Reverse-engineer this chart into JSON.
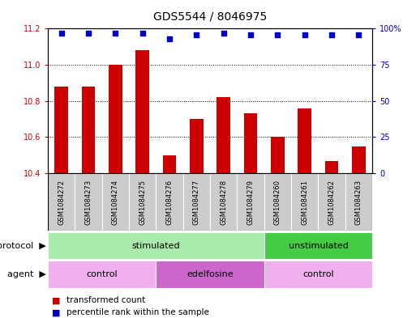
{
  "title": "GDS5544 / 8046975",
  "samples": [
    "GSM1084272",
    "GSM1084273",
    "GSM1084274",
    "GSM1084275",
    "GSM1084276",
    "GSM1084277",
    "GSM1084278",
    "GSM1084279",
    "GSM1084260",
    "GSM1084261",
    "GSM1084262",
    "GSM1084263"
  ],
  "bar_values": [
    10.88,
    10.88,
    11.0,
    11.08,
    10.5,
    10.7,
    10.82,
    10.73,
    10.6,
    10.76,
    10.47,
    10.55
  ],
  "dot_values": [
    97,
    97,
    97,
    97,
    93,
    96,
    97,
    96,
    96,
    96,
    96,
    96
  ],
  "bar_color": "#cc0000",
  "dot_color": "#0000cc",
  "ylim_left": [
    10.4,
    11.2
  ],
  "ylim_right": [
    0,
    100
  ],
  "yticks_left": [
    10.4,
    10.6,
    10.8,
    11.0,
    11.2
  ],
  "yticks_right": [
    0,
    25,
    50,
    75,
    100
  ],
  "protocol_groups": [
    {
      "label": "stimulated",
      "start": 0,
      "end": 8,
      "color": "#aaeaaa"
    },
    {
      "label": "unstimulated",
      "start": 8,
      "end": 12,
      "color": "#44cc44"
    }
  ],
  "agent_groups": [
    {
      "label": "control",
      "start": 0,
      "end": 4,
      "color": "#f0b0f0"
    },
    {
      "label": "edelfosine",
      "start": 4,
      "end": 8,
      "color": "#cc66cc"
    },
    {
      "label": "control",
      "start": 8,
      "end": 12,
      "color": "#f0b0f0"
    }
  ],
  "protocol_label": "protocol",
  "agent_label": "agent",
  "legend_items": [
    {
      "label": "transformed count",
      "color": "#cc0000"
    },
    {
      "label": "percentile rank within the sample",
      "color": "#0000cc"
    }
  ],
  "sample_box_color": "#cccccc",
  "bar_width": 0.5,
  "title_fontsize": 10,
  "tick_fontsize": 7,
  "sample_fontsize": 6,
  "row_fontsize": 8,
  "legend_fontsize": 7.5
}
